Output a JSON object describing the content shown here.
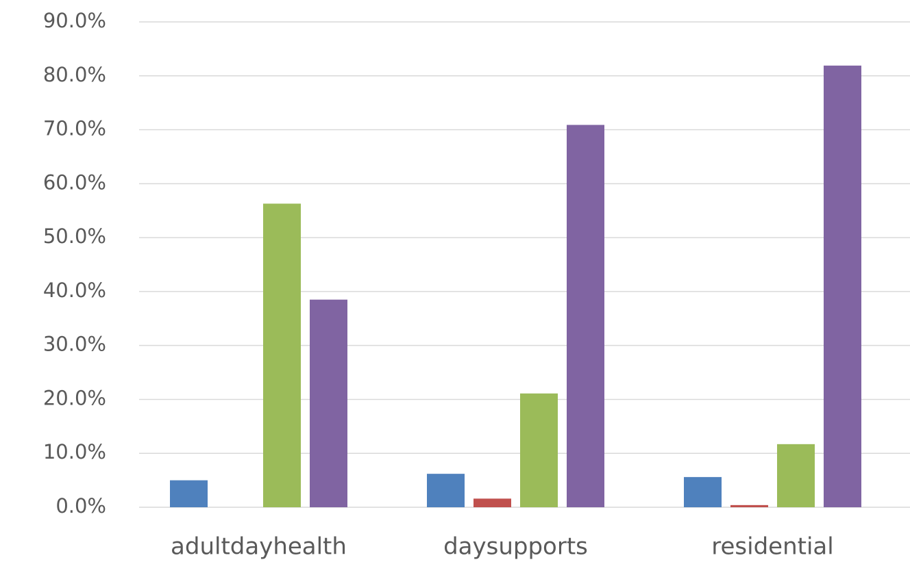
{
  "chart_data": {
    "type": "bar",
    "categories": [
      "adultdayhealth",
      "daysupports",
      "residential"
    ],
    "series": [
      {
        "color": "#4f81bd",
        "values": [
          5.0,
          6.2,
          5.6
        ]
      },
      {
        "color": "#c0504d",
        "values": [
          0,
          1.6,
          0.4
        ]
      },
      {
        "color": "#9bbb59",
        "values": [
          56.3,
          21.1,
          11.7
        ]
      },
      {
        "color": "#8064a2",
        "values": [
          38.5,
          70.9,
          81.9
        ]
      }
    ],
    "ylim": [
      0,
      90
    ],
    "yticks": [
      {
        "value": 0,
        "label": "0.0%"
      },
      {
        "value": 10,
        "label": "10.0%"
      },
      {
        "value": 20,
        "label": "20.0%"
      },
      {
        "value": 30,
        "label": "30.0%"
      },
      {
        "value": 40,
        "label": "40.0%"
      },
      {
        "value": 50,
        "label": "50.0%"
      },
      {
        "value": 60,
        "label": "60.0%"
      },
      {
        "value": 70,
        "label": "70.0%"
      },
      {
        "value": 80,
        "label": "80.0%"
      },
      {
        "value": 90,
        "label": "90.0%"
      }
    ],
    "grid": true
  }
}
